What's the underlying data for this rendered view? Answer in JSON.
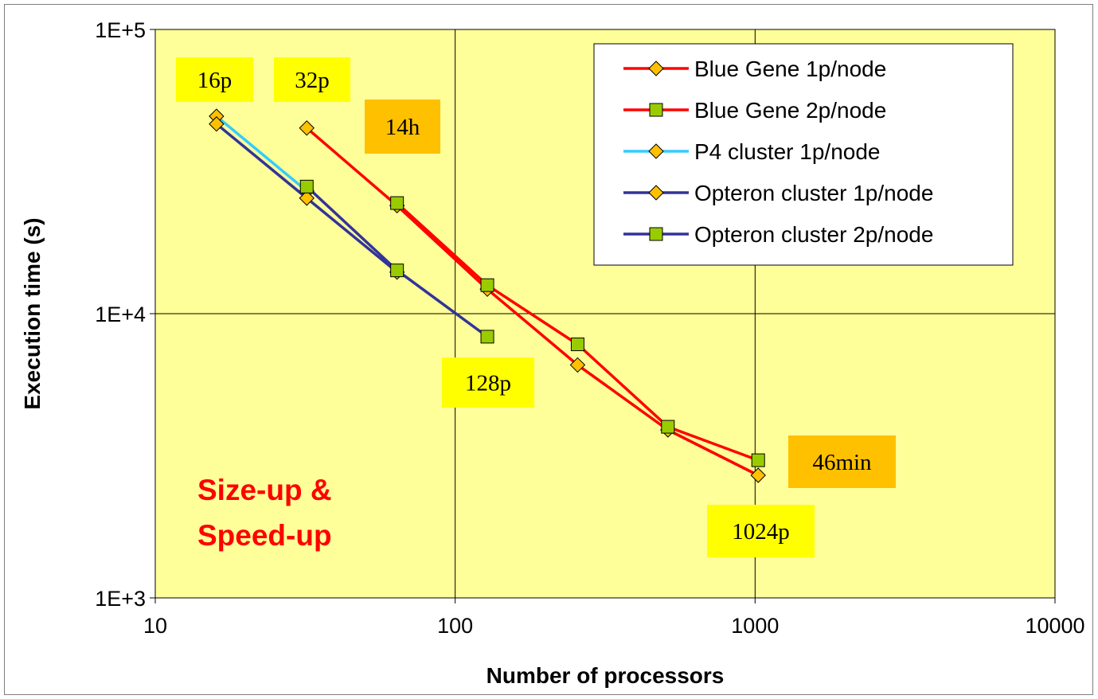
{
  "chart_data": {
    "type": "line",
    "x_scale": "log",
    "y_scale": "log",
    "xlabel": "Number of processors",
    "ylabel": "Execution time (s)",
    "xlim": [
      10,
      10000
    ],
    "ylim": [
      1000,
      100000
    ],
    "x_ticks": [
      "10",
      "100",
      "1000",
      "10000"
    ],
    "y_ticks": [
      "1E+3",
      "1E+4",
      "1E+5"
    ],
    "grid": true,
    "legend_position": "top-right",
    "plot_background": "#ffff99",
    "series": [
      {
        "name": "Blue Gene 1p/node",
        "color": "#ff0000",
        "marker": "diamond",
        "marker_color": "#ffc000",
        "x": [
          32,
          64,
          128,
          256,
          512,
          1024
        ],
        "y": [
          45000,
          24000,
          12200,
          6600,
          3900,
          2700
        ]
      },
      {
        "name": "Blue Gene 2p/node",
        "color": "#ff0000",
        "marker": "square",
        "marker_color": "#99cc00",
        "x": [
          64,
          128,
          256,
          512,
          1024
        ],
        "y": [
          24500,
          12600,
          7800,
          4000,
          3050
        ]
      },
      {
        "name": "P4 cluster 1p/node",
        "color": "#33ccff",
        "marker": "diamond",
        "marker_color": "#ffc000",
        "x": [
          16,
          32
        ],
        "y": [
          49500,
          27000
        ]
      },
      {
        "name": "Opteron cluster 1p/node",
        "color": "#333399",
        "marker": "diamond",
        "marker_color": "#ffc000",
        "x": [
          16,
          32,
          64
        ],
        "y": [
          46500,
          25500,
          14000
        ]
      },
      {
        "name": "Opteron cluster 2p/node",
        "color": "#333399",
        "marker": "square",
        "marker_color": "#99cc00",
        "x": [
          32,
          64,
          128
        ],
        "y": [
          28000,
          14200,
          8300
        ]
      }
    ],
    "annotations": [
      {
        "text": "16p",
        "style": "yellow"
      },
      {
        "text": "32p",
        "style": "yellow"
      },
      {
        "text": "14h",
        "style": "orange"
      },
      {
        "text": "128p",
        "style": "yellow"
      },
      {
        "text": "46min",
        "style": "orange"
      },
      {
        "text": "1024p",
        "style": "yellow"
      }
    ],
    "note": [
      "Size-up &",
      "Speed-up"
    ]
  }
}
